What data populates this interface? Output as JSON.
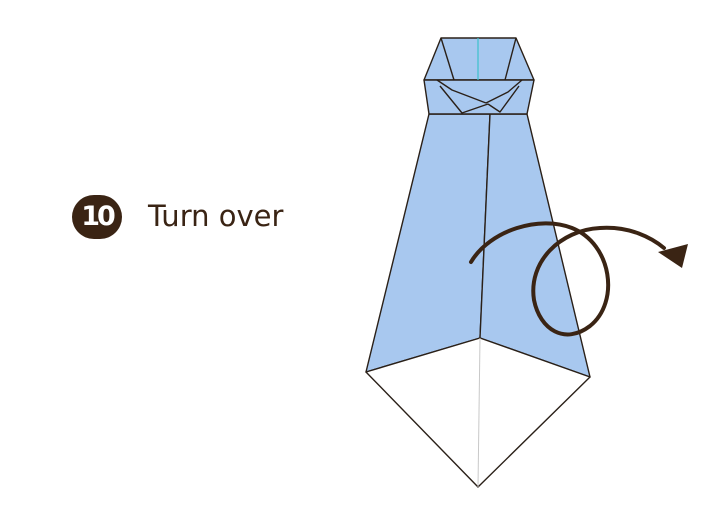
{
  "step": {
    "number": "10",
    "instruction": "Turn over"
  },
  "colors": {
    "paper_blue": "#a8c8ef",
    "outline": "#2a2018",
    "accent_brown": "#3a2414",
    "center_crease": "#3cc0cc",
    "valley_crease": "#c8c8c8"
  },
  "icons": {
    "turn_over": "turn-over-arrow-icon"
  }
}
